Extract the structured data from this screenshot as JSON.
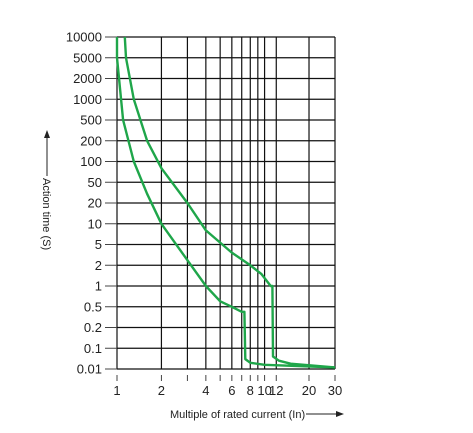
{
  "chart_data": {
    "type": "line",
    "title": "",
    "xlabel": "Multiple of rated current  (In)",
    "ylabel": "Action time (S)",
    "x_scale": "log",
    "y_scale": "log",
    "xlim": [
      1,
      30
    ],
    "ylim": [
      0.01,
      10000
    ],
    "grid": true,
    "x_ticks": [
      1,
      2,
      3,
      4,
      5,
      6,
      7,
      8,
      9,
      10,
      12,
      20,
      30
    ],
    "x_tick_labels": [
      {
        "value": 1,
        "label": "1"
      },
      {
        "value": 2,
        "label": "2"
      },
      {
        "value": 4,
        "label": "4"
      },
      {
        "value": 6,
        "label": "6"
      },
      {
        "value": 8,
        "label": "8"
      },
      {
        "value": 10,
        "label": "10"
      },
      {
        "value": 12,
        "label": "12"
      },
      {
        "value": 20,
        "label": "20"
      },
      {
        "value": 30,
        "label": "30"
      }
    ],
    "y_ticks": [
      {
        "value": 10000,
        "label": "10000"
      },
      {
        "value": 5000,
        "label": "5000"
      },
      {
        "value": 2000,
        "label": "2000"
      },
      {
        "value": 1000,
        "label": "1000"
      },
      {
        "value": 500,
        "label": "500"
      },
      {
        "value": 200,
        "label": "200"
      },
      {
        "value": 100,
        "label": "100"
      },
      {
        "value": 50,
        "label": "50"
      },
      {
        "value": 20,
        "label": "20"
      },
      {
        "value": 10,
        "label": "10"
      },
      {
        "value": 5,
        "label": "5"
      },
      {
        "value": 2,
        "label": "2"
      },
      {
        "value": 1,
        "label": "1"
      },
      {
        "value": 0.5,
        "label": "0.5"
      },
      {
        "value": 0.2,
        "label": "0.2"
      },
      {
        "value": 0.1,
        "label": "0.1"
      },
      {
        "value": 0.01,
        "label": "0.01"
      }
    ],
    "line_color": "#1fa64a",
    "series": [
      {
        "points": [
          [
            1.0,
            10000
          ],
          [
            1.0,
            5000
          ],
          [
            1.1,
            500
          ],
          [
            1.3,
            100
          ],
          [
            1.6,
            30
          ],
          [
            2.0,
            10
          ],
          [
            3.0,
            2.5
          ],
          [
            4.0,
            1.0
          ],
          [
            5.0,
            0.6
          ],
          [
            6.0,
            0.5
          ],
          [
            7.0,
            0.4
          ],
          [
            7.3,
            0.4
          ],
          [
            7.4,
            0.03
          ],
          [
            8.0,
            0.02
          ],
          [
            10.0,
            0.016
          ],
          [
            30.0,
            0.012
          ]
        ]
      },
      {
        "points": [
          [
            1.13,
            10000
          ],
          [
            1.15,
            5000
          ],
          [
            1.3,
            1000
          ],
          [
            1.6,
            200
          ],
          [
            2.0,
            80
          ],
          [
            3.0,
            20
          ],
          [
            4.0,
            8
          ],
          [
            6.0,
            3.5
          ],
          [
            8.0,
            2.0
          ],
          [
            9.5,
            1.5
          ],
          [
            11.0,
            1.0
          ],
          [
            11.3,
            1.0
          ],
          [
            11.4,
            0.04
          ],
          [
            12.5,
            0.025
          ],
          [
            15.0,
            0.018
          ],
          [
            30.0,
            0.012
          ]
        ]
      }
    ]
  }
}
